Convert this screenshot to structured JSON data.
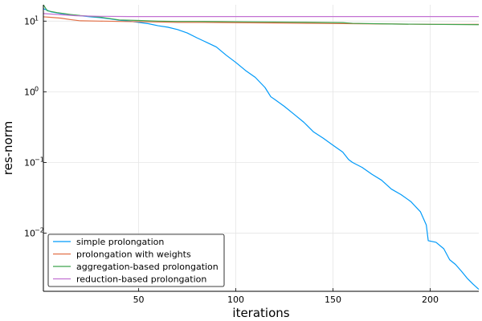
{
  "chart_data": {
    "type": "line",
    "title": "",
    "xlabel": "iterations",
    "ylabel": "res-norm",
    "xlim": [
      1,
      225
    ],
    "ylim": [
      0.0015,
      17
    ],
    "yscale": "log",
    "grid": true,
    "legend_position": "bottom-left",
    "x_ticks": [
      {
        "value": 50,
        "label": "50"
      },
      {
        "value": 100,
        "label": "100"
      },
      {
        "value": 150,
        "label": "150"
      },
      {
        "value": 200,
        "label": "200"
      }
    ],
    "y_ticks": [
      {
        "value": 0.01,
        "base": "10",
        "exp": "−2"
      },
      {
        "value": 0.1,
        "base": "10",
        "exp": "−1"
      },
      {
        "value": 1,
        "base": "10",
        "exp": "0"
      },
      {
        "value": 10,
        "base": "10",
        "exp": "1"
      }
    ],
    "series": [
      {
        "name": "simple prolongation",
        "color": "#009af9",
        "points": [
          [
            1,
            15
          ],
          [
            5,
            13.5
          ],
          [
            10,
            12.8
          ],
          [
            15,
            12.3
          ],
          [
            20,
            11.9
          ],
          [
            25,
            11.5
          ],
          [
            30,
            11.2
          ],
          [
            35,
            10.8
          ],
          [
            40,
            10.3
          ],
          [
            45,
            10.0
          ],
          [
            50,
            9.6
          ],
          [
            55,
            9.2
          ],
          [
            60,
            8.6
          ],
          [
            65,
            8.2
          ],
          [
            70,
            7.6
          ],
          [
            75,
            6.8
          ],
          [
            80,
            5.8
          ],
          [
            85,
            5.0
          ],
          [
            90,
            4.3
          ],
          [
            95,
            3.3
          ],
          [
            100,
            2.6
          ],
          [
            105,
            2.0
          ],
          [
            110,
            1.6
          ],
          [
            115,
            1.15
          ],
          [
            118,
            0.85
          ],
          [
            120,
            0.78
          ],
          [
            125,
            0.62
          ],
          [
            130,
            0.48
          ],
          [
            135,
            0.37
          ],
          [
            140,
            0.27
          ],
          [
            145,
            0.22
          ],
          [
            150,
            0.175
          ],
          [
            155,
            0.14
          ],
          [
            158,
            0.11
          ],
          [
            160,
            0.1
          ],
          [
            165,
            0.085
          ],
          [
            170,
            0.068
          ],
          [
            175,
            0.056
          ],
          [
            180,
            0.042
          ],
          [
            185,
            0.035
          ],
          [
            190,
            0.028
          ],
          [
            195,
            0.02
          ],
          [
            198,
            0.013
          ],
          [
            199,
            0.0078
          ],
          [
            203,
            0.0074
          ],
          [
            207,
            0.006
          ],
          [
            210,
            0.0042
          ],
          [
            213,
            0.0036
          ],
          [
            216,
            0.0029
          ],
          [
            219,
            0.0023
          ],
          [
            222,
            0.0019
          ],
          [
            225,
            0.0016
          ]
        ]
      },
      {
        "name": "prolongation with weights",
        "color": "#e26f46",
        "points": [
          [
            1,
            11.5
          ],
          [
            5,
            11.3
          ],
          [
            10,
            11.0
          ],
          [
            15,
            10.5
          ],
          [
            20,
            10.1
          ],
          [
            30,
            10.0
          ],
          [
            40,
            9.9
          ],
          [
            50,
            9.8
          ],
          [
            60,
            9.7
          ],
          [
            70,
            9.6
          ],
          [
            80,
            9.6
          ],
          [
            100,
            9.5
          ],
          [
            120,
            9.4
          ],
          [
            140,
            9.3
          ],
          [
            160,
            9.2
          ],
          [
            180,
            9.1
          ],
          [
            200,
            9.0
          ],
          [
            225,
            9.0
          ]
        ]
      },
      {
        "name": "aggregation-based prolongation",
        "color": "#3da44d",
        "points": [
          [
            1,
            17
          ],
          [
            3,
            14
          ],
          [
            8,
            13.2
          ],
          [
            15,
            12.4
          ],
          [
            20,
            12
          ],
          [
            30,
            11.4
          ],
          [
            40,
            10.4
          ],
          [
            50,
            10.2
          ],
          [
            60,
            10.0
          ],
          [
            70,
            9.9
          ],
          [
            80,
            9.9
          ],
          [
            100,
            9.8
          ],
          [
            120,
            9.7
          ],
          [
            140,
            9.6
          ],
          [
            155,
            9.5
          ],
          [
            160,
            9.3
          ],
          [
            180,
            9.1
          ],
          [
            200,
            9.0
          ],
          [
            225,
            8.9
          ]
        ]
      },
      {
        "name": "reduction-based prolongation",
        "color": "#c271d2",
        "points": [
          [
            1,
            12.8
          ],
          [
            10,
            12.3
          ],
          [
            18,
            11.9
          ],
          [
            30,
            11.7
          ],
          [
            45,
            11.6
          ],
          [
            60,
            11.6
          ],
          [
            80,
            11.6
          ],
          [
            100,
            11.6
          ],
          [
            150,
            11.6
          ],
          [
            200,
            11.6
          ],
          [
            225,
            11.6
          ]
        ]
      }
    ]
  }
}
